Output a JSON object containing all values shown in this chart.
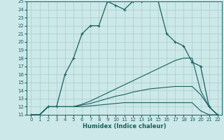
{
  "xlabel": "Humidex (Indice chaleur)",
  "xlim": [
    -0.5,
    22.5
  ],
  "ylim": [
    11,
    25
  ],
  "yticks": [
    11,
    12,
    13,
    14,
    15,
    16,
    17,
    18,
    19,
    20,
    21,
    22,
    23,
    24,
    25
  ],
  "xticks": [
    0,
    1,
    2,
    3,
    4,
    5,
    6,
    7,
    8,
    9,
    10,
    11,
    12,
    13,
    14,
    15,
    16,
    17,
    18,
    19,
    20,
    21,
    22
  ],
  "bg_color": "#cce8e8",
  "grid_color": "#aacccc",
  "line_color": "#1a6060",
  "line0": {
    "x": [
      0,
      1,
      2,
      3,
      4,
      5,
      6,
      7,
      8,
      9,
      10,
      11,
      12,
      13,
      14,
      15,
      16,
      17,
      18,
      19,
      20,
      21,
      22
    ],
    "y": [
      11,
      11,
      12,
      12,
      16,
      18,
      21,
      22,
      22,
      25,
      24.5,
      24,
      25,
      25,
      25.5,
      25,
      21,
      20,
      19.5,
      17.5,
      17,
      12,
      11
    ]
  },
  "line1": {
    "x": [
      0,
      1,
      2,
      3,
      4,
      5,
      6,
      7,
      8,
      9,
      10,
      11,
      12,
      13,
      14,
      15,
      16,
      17,
      18,
      19,
      20,
      21,
      22
    ],
    "y": [
      11,
      11,
      12,
      12,
      12,
      12,
      12.3,
      12.7,
      13.2,
      13.7,
      14.2,
      14.7,
      15.2,
      15.7,
      16.2,
      16.7,
      17.2,
      17.7,
      18.0,
      18.0,
      14,
      12,
      11
    ]
  },
  "line2": {
    "x": [
      0,
      1,
      2,
      3,
      4,
      5,
      6,
      7,
      8,
      9,
      10,
      11,
      12,
      13,
      14,
      15,
      16,
      17,
      18,
      19,
      20,
      21,
      22
    ],
    "y": [
      11,
      11,
      12,
      12,
      12,
      12,
      12.2,
      12.4,
      12.7,
      13.0,
      13.3,
      13.5,
      13.8,
      14.0,
      14.2,
      14.3,
      14.4,
      14.5,
      14.5,
      14.5,
      13.5,
      12,
      11
    ]
  },
  "line3": {
    "x": [
      0,
      1,
      2,
      3,
      4,
      5,
      6,
      7,
      8,
      9,
      10,
      11,
      12,
      13,
      14,
      15,
      16,
      17,
      18,
      19,
      20,
      21,
      22
    ],
    "y": [
      11,
      11,
      12,
      12,
      12,
      12,
      12,
      12.1,
      12.2,
      12.3,
      12.4,
      12.5,
      12.5,
      12.5,
      12.5,
      12.5,
      12.5,
      12.5,
      12.5,
      12.5,
      11.5,
      11,
      11
    ]
  }
}
